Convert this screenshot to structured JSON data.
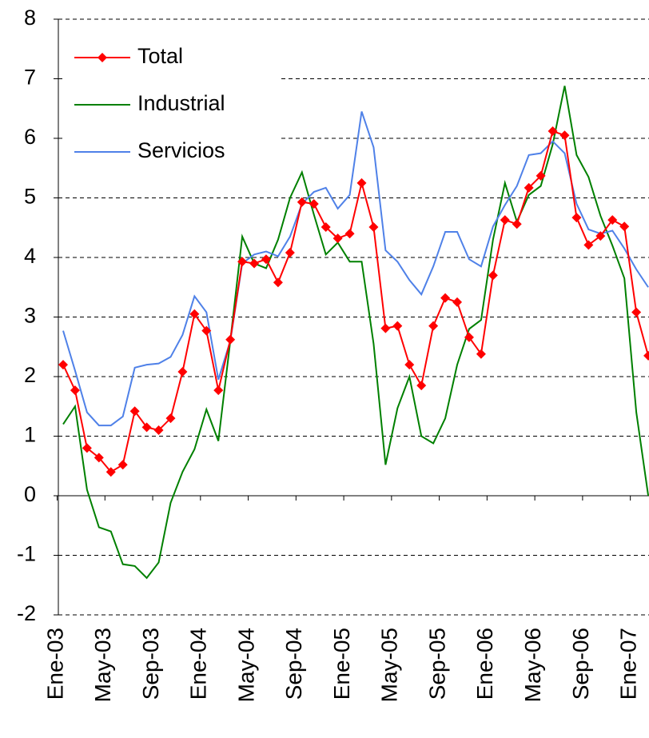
{
  "chart_data": {
    "type": "line",
    "categories": [
      "Ene-03",
      null,
      null,
      null,
      "May-03",
      null,
      null,
      null,
      "Sep-03",
      null,
      null,
      null,
      "Ene-04",
      null,
      null,
      null,
      "May-04",
      null,
      null,
      null,
      "Sep-04",
      null,
      null,
      null,
      "Ene-05",
      null,
      null,
      null,
      "May-05",
      null,
      null,
      null,
      "Sep-05",
      null,
      null,
      null,
      "Ene-06",
      null,
      null,
      null,
      "May-06",
      null,
      null,
      null,
      "Sep-06",
      null,
      null,
      null,
      "Ene-07",
      null
    ],
    "series": [
      {
        "name": "Total",
        "color": "#ff0000",
        "marker": "diamond",
        "values": [
          2.2,
          1.77,
          0.8,
          0.64,
          0.4,
          0.52,
          1.42,
          1.15,
          1.1,
          1.3,
          2.08,
          3.05,
          2.77,
          1.77,
          2.62,
          3.93,
          3.9,
          3.97,
          3.58,
          4.08,
          4.93,
          4.9,
          4.51,
          4.32,
          4.4,
          5.25,
          4.51,
          2.81,
          2.85,
          2.2,
          1.85,
          2.85,
          3.32,
          3.25,
          2.66,
          2.38,
          3.7,
          4.63,
          4.56,
          5.17,
          5.37,
          6.12,
          6.05,
          4.67,
          4.21,
          4.36,
          4.63,
          4.52,
          3.08,
          2.35
        ]
      },
      {
        "name": "Industrial",
        "color": "#008000",
        "values": [
          1.2,
          1.5,
          0.1,
          -0.53,
          -0.6,
          -1.15,
          -1.18,
          -1.38,
          -1.12,
          -0.12,
          0.4,
          0.78,
          1.45,
          0.92,
          2.6,
          4.35,
          3.9,
          3.82,
          4.3,
          5.0,
          5.43,
          4.72,
          4.05,
          4.25,
          3.93,
          3.93,
          2.55,
          0.52,
          1.47,
          2.0,
          1.0,
          0.88,
          1.3,
          2.2,
          2.8,
          2.95,
          4.3,
          5.25,
          4.6,
          5.05,
          5.2,
          5.9,
          6.88,
          5.72,
          5.35,
          4.7,
          4.2,
          3.65,
          1.4,
          0.0
        ]
      },
      {
        "name": "Servicios",
        "color": "#4f81e8",
        "values": [
          2.77,
          2.1,
          1.4,
          1.18,
          1.18,
          1.33,
          2.15,
          2.2,
          2.22,
          2.33,
          2.7,
          3.35,
          3.08,
          1.95,
          2.6,
          3.9,
          4.05,
          4.1,
          4.02,
          4.35,
          4.9,
          5.1,
          5.17,
          4.82,
          5.05,
          6.45,
          5.85,
          4.12,
          3.93,
          3.62,
          3.38,
          3.85,
          4.43,
          4.43,
          3.97,
          3.85,
          4.52,
          4.88,
          5.2,
          5.72,
          5.75,
          5.95,
          5.75,
          4.9,
          4.47,
          4.4,
          4.45,
          4.15,
          3.8,
          3.5
        ]
      }
    ],
    "ylim": [
      -2,
      8
    ],
    "yticks": [
      -2,
      -1,
      0,
      1,
      2,
      3,
      4,
      5,
      6,
      7,
      8
    ],
    "grid": true,
    "legend": "upper-left"
  }
}
